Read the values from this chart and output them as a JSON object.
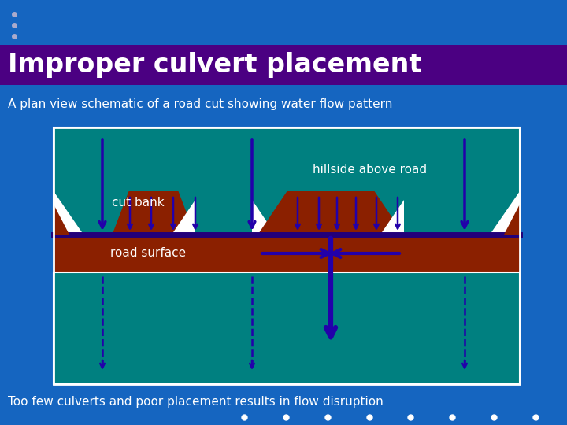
{
  "bg_color": "#1565C0",
  "title": "Improper culvert placement",
  "title_bg": "#4B0082",
  "title_color": "white",
  "subtitle": "A plan view schematic of a road cut showing water flow pattern",
  "subtitle_color": "white",
  "footer": "Too few culverts and poor placement results in flow disruption",
  "footer_color": "white",
  "hillside_color": "#008080",
  "road_color": "#8B2000",
  "below_color": "#008080",
  "arrow_color": "#2200AA",
  "mound_color": "#8B2000",
  "white_color": "white"
}
